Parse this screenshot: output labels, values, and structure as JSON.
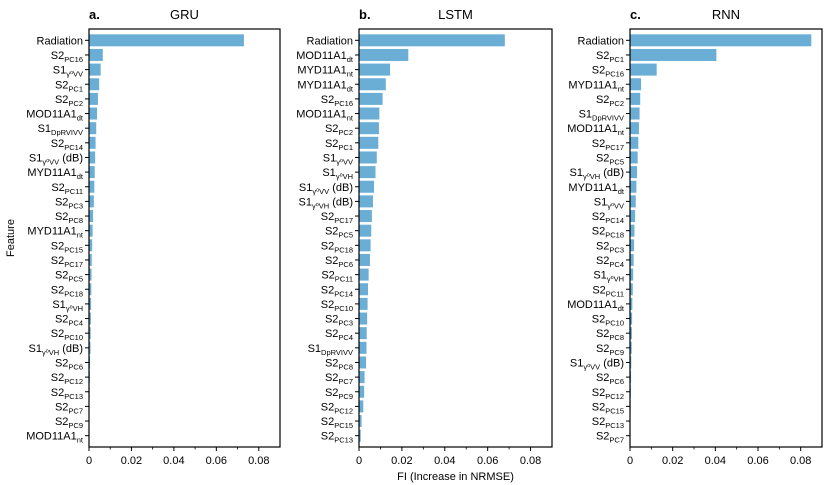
{
  "chart_data": [
    {
      "type": "bar",
      "orientation": "horizontal",
      "letter": "a.",
      "title": "GRU",
      "ylabel": "Feature",
      "xlabel": "",
      "xlim": [
        0,
        0.09
      ],
      "xticks": [
        "0",
        "0.02",
        "0.04",
        "0.06",
        "0.08"
      ],
      "bar_color": "#6aaed6",
      "categories": [
        {
          "base": "Radiation",
          "sub": ""
        },
        {
          "base": "S2",
          "sub": "PC16"
        },
        {
          "base": "S1",
          "sub": "γ⁰VV"
        },
        {
          "base": "S2",
          "sub": "PC1"
        },
        {
          "base": "S2",
          "sub": "PC2"
        },
        {
          "base": "MOD11A1",
          "sub": "dt"
        },
        {
          "base": "S1",
          "sub": "DpRVIVV"
        },
        {
          "base": "S2",
          "sub": "PC14"
        },
        {
          "base": "S1",
          "sub": "γ⁰VV",
          "suffix": " (dB)"
        },
        {
          "base": "MYD11A1",
          "sub": "dt"
        },
        {
          "base": "S2",
          "sub": "PC11"
        },
        {
          "base": "S2",
          "sub": "PC3"
        },
        {
          "base": "S2",
          "sub": "PC8"
        },
        {
          "base": "MYD11A1",
          "sub": "nt"
        },
        {
          "base": "S2",
          "sub": "PC15"
        },
        {
          "base": "S2",
          "sub": "PC17"
        },
        {
          "base": "S2",
          "sub": "PC5"
        },
        {
          "base": "S2",
          "sub": "PC18"
        },
        {
          "base": "S1",
          "sub": "γ⁰VH"
        },
        {
          "base": "S2",
          "sub": "PC4"
        },
        {
          "base": "S2",
          "sub": "PC10"
        },
        {
          "base": "S1",
          "sub": "γ⁰VH",
          "suffix": " (dB)"
        },
        {
          "base": "S2",
          "sub": "PC6"
        },
        {
          "base": "S2",
          "sub": "PC12"
        },
        {
          "base": "S2",
          "sub": "PC13"
        },
        {
          "base": "S2",
          "sub": "PC7"
        },
        {
          "base": "S2",
          "sub": "PC9"
        },
        {
          "base": "MOD11A1",
          "sub": "nt"
        }
      ],
      "values": [
        0.073,
        0.0065,
        0.0055,
        0.0048,
        0.0042,
        0.0038,
        0.0034,
        0.0031,
        0.0029,
        0.0027,
        0.0025,
        0.0023,
        0.0019,
        0.0017,
        0.0015,
        0.0013,
        0.0012,
        0.0011,
        0.001,
        0.0009,
        0.0008,
        0.0007,
        0.0005,
        0.0004,
        0.0003,
        0.0002,
        0.0001,
        0.0001
      ]
    },
    {
      "type": "bar",
      "orientation": "horizontal",
      "letter": "b.",
      "title": "LSTM",
      "ylabel": "",
      "xlabel": "FI (Increase in NRMSE)",
      "xlim": [
        0,
        0.09
      ],
      "xticks": [
        "0",
        "0.02",
        "0.04",
        "0.06",
        "0.08"
      ],
      "bar_color": "#6aaed6",
      "categories": [
        {
          "base": "Radiation",
          "sub": ""
        },
        {
          "base": "MOD11A1",
          "sub": "dt"
        },
        {
          "base": "MYD11A1",
          "sub": "nt"
        },
        {
          "base": "MYD11A1",
          "sub": "dt"
        },
        {
          "base": "S2",
          "sub": "PC16"
        },
        {
          "base": "MOD11A1",
          "sub": "nt"
        },
        {
          "base": "S2",
          "sub": "PC2"
        },
        {
          "base": "S2",
          "sub": "PC1"
        },
        {
          "base": "S1",
          "sub": "γ⁰VV"
        },
        {
          "base": "S1",
          "sub": "γ⁰VH"
        },
        {
          "base": "S1",
          "sub": "γ⁰VV",
          "suffix": " (dB)"
        },
        {
          "base": "S1",
          "sub": "γ⁰VH",
          "suffix": " (dB)"
        },
        {
          "base": "S2",
          "sub": "PC17"
        },
        {
          "base": "S2",
          "sub": "PC5"
        },
        {
          "base": "S2",
          "sub": "PC18"
        },
        {
          "base": "S2",
          "sub": "PC6"
        },
        {
          "base": "S2",
          "sub": "PC11"
        },
        {
          "base": "S2",
          "sub": "PC14"
        },
        {
          "base": "S2",
          "sub": "PC10"
        },
        {
          "base": "S2",
          "sub": "PC3"
        },
        {
          "base": "S2",
          "sub": "PC4"
        },
        {
          "base": "S1",
          "sub": "DpRVIVV"
        },
        {
          "base": "S2",
          "sub": "PC8"
        },
        {
          "base": "S2",
          "sub": "PC7"
        },
        {
          "base": "S2",
          "sub": "PC9"
        },
        {
          "base": "S2",
          "sub": "PC12"
        },
        {
          "base": "S2",
          "sub": "PC15"
        },
        {
          "base": "S2",
          "sub": "PC13"
        }
      ],
      "values": [
        0.068,
        0.023,
        0.0145,
        0.0125,
        0.011,
        0.0095,
        0.0093,
        0.009,
        0.0083,
        0.0077,
        0.007,
        0.0065,
        0.006,
        0.0057,
        0.0054,
        0.0051,
        0.0045,
        0.0042,
        0.004,
        0.0038,
        0.0036,
        0.0035,
        0.0033,
        0.0026,
        0.0024,
        0.002,
        0.0012,
        0.0008
      ]
    },
    {
      "type": "bar",
      "orientation": "horizontal",
      "letter": "c.",
      "title": "RNN",
      "ylabel": "",
      "xlabel": "",
      "xlim": [
        0,
        0.09
      ],
      "xticks": [
        "0",
        "0.02",
        "0.04",
        "0.06",
        "0.08"
      ],
      "bar_color": "#6aaed6",
      "categories": [
        {
          "base": "Radiation",
          "sub": ""
        },
        {
          "base": "S2",
          "sub": "PC1"
        },
        {
          "base": "S2",
          "sub": "PC16"
        },
        {
          "base": "MYD11A1",
          "sub": "nt"
        },
        {
          "base": "S2",
          "sub": "PC2"
        },
        {
          "base": "S1",
          "sub": "DpRVIVV"
        },
        {
          "base": "MOD11A1",
          "sub": "nt"
        },
        {
          "base": "S2",
          "sub": "PC17"
        },
        {
          "base": "S2",
          "sub": "PC5"
        },
        {
          "base": "S1",
          "sub": "γ⁰VH",
          "suffix": " (dB)"
        },
        {
          "base": "MYD11A1",
          "sub": "dt"
        },
        {
          "base": "S1",
          "sub": "γ⁰VV"
        },
        {
          "base": "S2",
          "sub": "PC14"
        },
        {
          "base": "S2",
          "sub": "PC18"
        },
        {
          "base": "S2",
          "sub": "PC3"
        },
        {
          "base": "S2",
          "sub": "PC4"
        },
        {
          "base": "S1",
          "sub": "γ⁰VH"
        },
        {
          "base": "S2",
          "sub": "PC11"
        },
        {
          "base": "MOD11A1",
          "sub": "dt"
        },
        {
          "base": "S2",
          "sub": "PC10"
        },
        {
          "base": "S2",
          "sub": "PC8"
        },
        {
          "base": "S2",
          "sub": "PC9"
        },
        {
          "base": "S1",
          "sub": "γ⁰VV",
          "suffix": " (dB)"
        },
        {
          "base": "S2",
          "sub": "PC6"
        },
        {
          "base": "S2",
          "sub": "PC12"
        },
        {
          "base": "S2",
          "sub": "PC15"
        },
        {
          "base": "S2",
          "sub": "PC13"
        },
        {
          "base": "S2",
          "sub": "PC7"
        }
      ],
      "values": [
        0.085,
        0.0405,
        0.0125,
        0.0052,
        0.0048,
        0.0045,
        0.0042,
        0.0039,
        0.0036,
        0.0033,
        0.003,
        0.0027,
        0.0024,
        0.0021,
        0.0019,
        0.0017,
        0.0015,
        0.0013,
        0.0011,
        0.001,
        0.0009,
        0.0008,
        0.0006,
        0.0005,
        0.0004,
        0.0003,
        0.0002,
        0.0001
      ]
    }
  ]
}
